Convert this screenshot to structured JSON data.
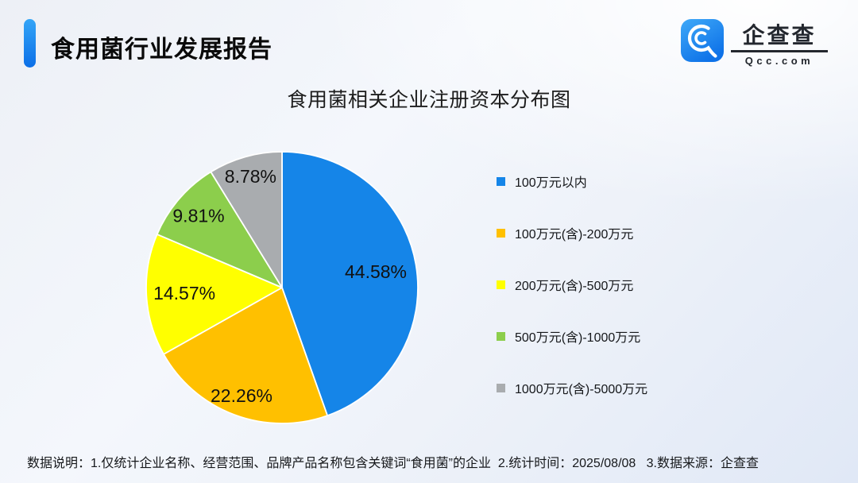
{
  "page": {
    "title": "食用菌行业发展报告",
    "footer_note": "数据说明：1.仅统计企业名称、经营范围、品牌产品名称包含关键词“食用菌”的企业  2.统计时间：2025/08/08   3.数据来源：企查查"
  },
  "logo": {
    "brand_name": "企查查",
    "brand_domain": "Qcc.com",
    "icon": "qcc-magnifier-icon",
    "icon_gradient": [
      "#3fa9f8",
      "#0e72e8"
    ]
  },
  "accent": {
    "bar_gradient": [
      "#34a5f7",
      "#0b6fe7"
    ],
    "brand_blue": "#1585e8"
  },
  "chart_data": {
    "type": "pie",
    "title": "食用菌相关企业注册资本分布图",
    "categories": [
      "100万元以内",
      "100万元(含)-200万元",
      "200万元(含)-500万元",
      "500万元(含)-1000万元",
      "1000万元(含)-5000万元"
    ],
    "values": [
      44.58,
      22.26,
      14.57,
      9.81,
      8.78
    ],
    "labels": [
      "44.58%",
      "22.26%",
      "14.57%",
      "9.81%",
      "8.78%"
    ],
    "colors": [
      "#1585e8",
      "#ffc000",
      "#ffff00",
      "#8cce4c",
      "#a9acaf"
    ],
    "start_angle_deg": 0,
    "direction": "clockwise",
    "legend_position": "right",
    "label_radius_fractions": [
      0.7,
      0.85,
      0.72,
      0.81,
      0.85
    ],
    "slice_border_color": "#ffffff"
  }
}
